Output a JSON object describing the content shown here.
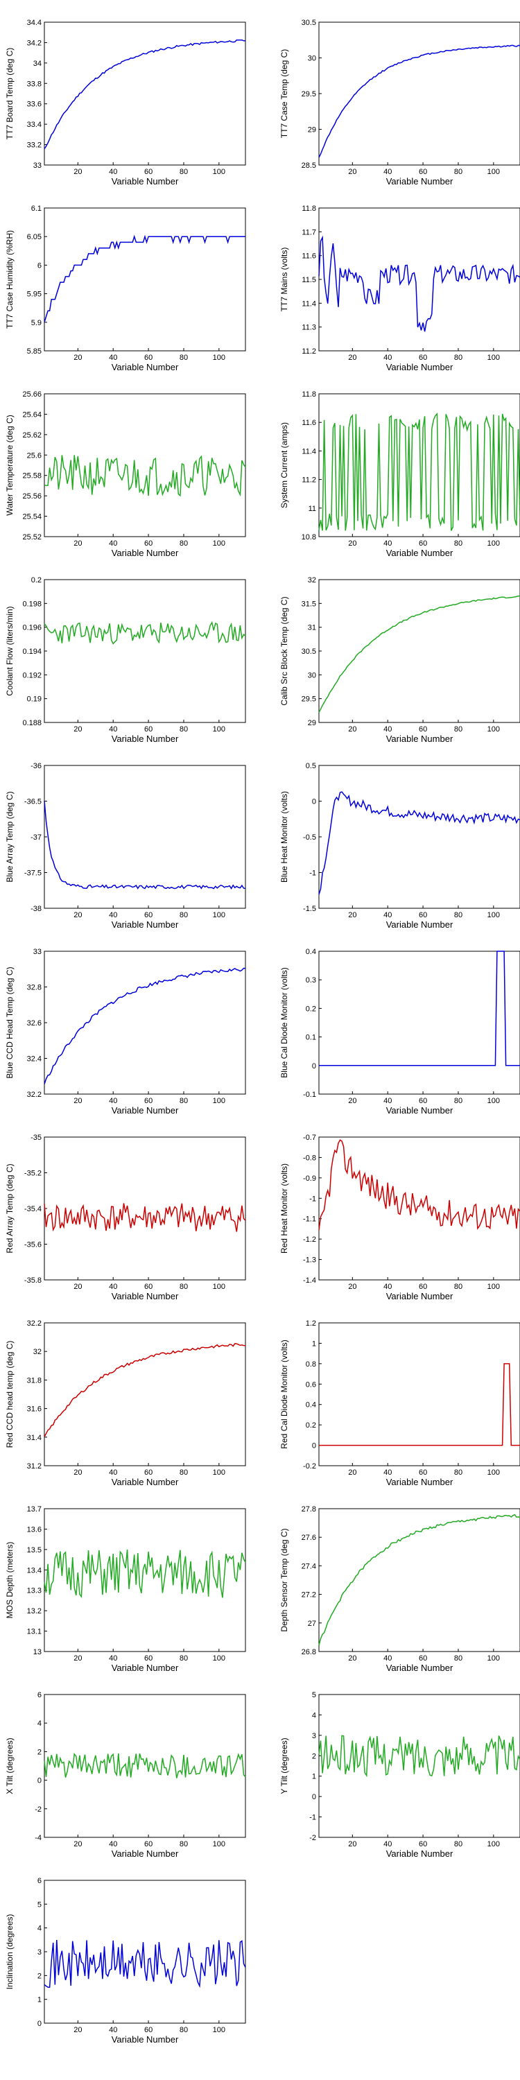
{
  "chart_data": [
    {
      "type": "line",
      "ylabel": "TT7 Board Temp (deg C)",
      "xlabel": "Variable Number",
      "color": "#0000dd",
      "xlim": [
        1,
        115
      ],
      "ylim": [
        33,
        34.4
      ],
      "xticks": [
        20,
        40,
        60,
        80,
        100
      ],
      "yticks": [
        "33",
        "33.2",
        "33.4",
        "33.6",
        "33.8",
        "34",
        "34.2",
        "34.4"
      ],
      "generator": {
        "kind": "rise",
        "start": 33.15,
        "end": 34.22,
        "rate": 0.035,
        "noise": 0.02,
        "seed": 11
      }
    },
    {
      "type": "line",
      "ylabel": "TT7 Case Temp (deg C)",
      "xlabel": "Variable Number",
      "color": "#0000dd",
      "xlim": [
        1,
        115
      ],
      "ylim": [
        28.5,
        30.5
      ],
      "xticks": [
        20,
        40,
        60,
        80,
        100
      ],
      "yticks": [
        "28.5",
        "29",
        "29.5",
        "30",
        "30.5"
      ],
      "generator": {
        "kind": "rise",
        "start": 28.6,
        "end": 30.17,
        "rate": 0.04,
        "noise": 0.02,
        "seed": 12
      }
    },
    {
      "type": "line",
      "ylabel": "TT7 Case Humidity (%RH)",
      "xlabel": "Variable Number",
      "color": "#0000dd",
      "xlim": [
        1,
        115
      ],
      "ylim": [
        5.85,
        6.1
      ],
      "xticks": [
        20,
        40,
        60,
        80,
        100
      ],
      "yticks": [
        "5.85",
        "5.9",
        "5.95",
        "6",
        "6.05",
        "6.1"
      ],
      "generator": {
        "kind": "steps",
        "start": 5.9,
        "end": 6.05,
        "rate": 0.06,
        "step": 0.01,
        "noise": 0.01,
        "seed": 13
      }
    },
    {
      "type": "line",
      "ylabel": "TT7 Mains  (volts)",
      "xlabel": "Variable Number",
      "color": "#0000dd",
      "xlim": [
        1,
        115
      ],
      "ylim": [
        11.2,
        11.8
      ],
      "xticks": [
        20,
        40,
        60,
        80,
        100
      ],
      "yticks": [
        "11.2",
        "11.3",
        "11.4",
        "11.5",
        "11.6",
        "11.7",
        "11.8"
      ],
      "generator": {
        "kind": "mains",
        "base": 11.52,
        "noise": 0.04,
        "seed": 14
      }
    },
    {
      "type": "line",
      "ylabel": "Water Temperature (deg C)",
      "xlabel": "Variable Number",
      "color": "#22aa22",
      "xlim": [
        1,
        115
      ],
      "ylim": [
        25.52,
        25.66
      ],
      "xticks": [
        20,
        40,
        60,
        80,
        100
      ],
      "yticks": [
        "25.52",
        "25.54",
        "25.56",
        "25.58",
        "25.6",
        "25.62",
        "25.64",
        "25.66"
      ],
      "generator": {
        "kind": "noisy",
        "base": 25.58,
        "amp": 0.02,
        "seed": 21
      }
    },
    {
      "type": "line",
      "ylabel": "System Current (amps)",
      "xlabel": "Variable Number",
      "color": "#22aa22",
      "xlim": [
        1,
        115
      ],
      "ylim": [
        10.8,
        11.8
      ],
      "xticks": [
        20,
        40,
        60,
        80,
        100
      ],
      "yticks": [
        "10.8",
        "11",
        "11.2",
        "11.4",
        "11.6",
        "11.8"
      ],
      "generator": {
        "kind": "switch",
        "low": 10.9,
        "high": 11.6,
        "noise": 0.06,
        "seed": 22
      }
    },
    {
      "type": "line",
      "ylabel": "Coolant Flow (liters/min)",
      "xlabel": "Variable Number",
      "color": "#22aa22",
      "xlim": [
        1,
        115
      ],
      "ylim": [
        0.188,
        0.2
      ],
      "xticks": [
        20,
        40,
        60,
        80,
        100
      ],
      "yticks": [
        "0.188",
        "0.19",
        "0.192",
        "0.194",
        "0.196",
        "0.198",
        "0.2"
      ],
      "generator": {
        "kind": "noisy",
        "base": 0.1955,
        "amp": 0.0009,
        "seed": 23
      }
    },
    {
      "type": "line",
      "ylabel": "Calib Src Block Temp (deg C)",
      "xlabel": "Variable Number",
      "color": "#22aa22",
      "xlim": [
        1,
        115
      ],
      "ylim": [
        29,
        32
      ],
      "xticks": [
        20,
        40,
        60,
        80,
        100
      ],
      "yticks": [
        "29",
        "29.5",
        "30",
        "30.5",
        "31",
        "31.5",
        "32"
      ],
      "generator": {
        "kind": "rise",
        "start": 29.2,
        "end": 31.65,
        "rate": 0.03,
        "noise": 0.03,
        "seed": 24
      }
    },
    {
      "type": "line",
      "ylabel": "Blue Array Temp (deg C)",
      "xlabel": "Variable Number",
      "color": "#0000dd",
      "xlim": [
        1,
        115
      ],
      "ylim": [
        -38,
        -36
      ],
      "xticks": [
        20,
        40,
        60,
        80,
        100
      ],
      "yticks": [
        "-38",
        "-37.5",
        "-37",
        "-36.5",
        "-36"
      ],
      "generator": {
        "kind": "drop",
        "start": -36.5,
        "end": -37.7,
        "rate": 0.25,
        "noise": 0.05,
        "seed": 31
      }
    },
    {
      "type": "line",
      "ylabel": "Blue Heat Monitor (volts)",
      "xlabel": "Variable Number",
      "color": "#0000dd",
      "xlim": [
        1,
        115
      ],
      "ylim": [
        -1.5,
        0.5
      ],
      "xticks": [
        20,
        40,
        60,
        80,
        100
      ],
      "yticks": [
        "-1.5",
        "-1",
        "-0.5",
        "0",
        "0.5"
      ],
      "generator": {
        "kind": "spike_decay",
        "start": -1.3,
        "peak": 0.1,
        "end": -0.25,
        "noise": 0.07,
        "seed": 32
      }
    },
    {
      "type": "line",
      "ylabel": "Blue CCD Head Temp (deg C)",
      "xlabel": "Variable Number",
      "color": "#0000dd",
      "xlim": [
        1,
        115
      ],
      "ylim": [
        32.2,
        33
      ],
      "xticks": [
        20,
        40,
        60,
        80,
        100
      ],
      "yticks": [
        "32.2",
        "32.4",
        "32.6",
        "32.8",
        "33"
      ],
      "generator": {
        "kind": "rise",
        "start": 32.26,
        "end": 32.9,
        "rate": 0.03,
        "noise": 0.02,
        "seed": 33
      }
    },
    {
      "type": "line",
      "ylabel": "Blue Cal Diode Monitor (volts)",
      "xlabel": "Variable Number",
      "color": "#0000dd",
      "xlim": [
        1,
        115
      ],
      "ylim": [
        -0.1,
        0.4
      ],
      "xticks": [
        20,
        40,
        60,
        80,
        100
      ],
      "yticks": [
        "-0.1",
        "0",
        "0.1",
        "0.2",
        "0.3",
        "0.4"
      ],
      "generator": {
        "kind": "pulse",
        "base": 0,
        "height": 0.4,
        "from": 102,
        "to": 106,
        "seed": 34
      }
    },
    {
      "type": "line",
      "ylabel": "Red Array Temp (deg C)",
      "xlabel": "Variable Number",
      "color": "#cc0000",
      "xlim": [
        1,
        115
      ],
      "ylim": [
        -35.8,
        -35
      ],
      "xticks": [
        20,
        40,
        60,
        80,
        100
      ],
      "yticks": [
        "-35.8",
        "-35.6",
        "-35.4",
        "-35.2",
        "-35"
      ],
      "generator": {
        "kind": "noisy",
        "base": -35.45,
        "amp": 0.08,
        "seed": 41
      }
    },
    {
      "type": "line",
      "ylabel": "Red Heat Monitor (volts)",
      "xlabel": "Variable Number",
      "color": "#cc0000",
      "xlim": [
        1,
        115
      ],
      "ylim": [
        -1.4,
        -0.7
      ],
      "xticks": [
        20,
        40,
        60,
        80,
        100
      ],
      "yticks": [
        "-1.4",
        "-1.3",
        "-1.2",
        "-1.1",
        "-1",
        "-0.9",
        "-0.8",
        "-0.7"
      ],
      "generator": {
        "kind": "spike_decay",
        "start": -1.2,
        "peak": -0.75,
        "end": -1.1,
        "noise": 0.07,
        "seed": 42
      }
    },
    {
      "type": "line",
      "ylabel": "Red CCD head temp (deg C)",
      "xlabel": "Variable Number",
      "color": "#cc0000",
      "xlim": [
        1,
        115
      ],
      "ylim": [
        31.2,
        32.2
      ],
      "xticks": [
        20,
        40,
        60,
        80,
        100
      ],
      "yticks": [
        "31.2",
        "31.4",
        "31.6",
        "31.8",
        "32",
        "32.2"
      ],
      "generator": {
        "kind": "rise",
        "start": 31.4,
        "end": 32.05,
        "rate": 0.03,
        "noise": 0.02,
        "seed": 43
      }
    },
    {
      "type": "line",
      "ylabel": "Red Cal Diode Monitor (volts)",
      "xlabel": "Variable Number",
      "color": "#cc0000",
      "xlim": [
        1,
        115
      ],
      "ylim": [
        -0.2,
        1.2
      ],
      "xticks": [
        20,
        40,
        60,
        80,
        100
      ],
      "yticks": [
        "-0.2",
        "0",
        "0.2",
        "0.4",
        "0.6",
        "0.8",
        "1",
        "1.2"
      ],
      "generator": {
        "kind": "pulse",
        "base": 0,
        "height": 0.8,
        "from": 106,
        "to": 109,
        "seed": 44
      }
    },
    {
      "type": "line",
      "ylabel": "MOS Depth  (meters)",
      "xlabel": "Variable Number",
      "color": "#22aa22",
      "xlim": [
        1,
        115
      ],
      "ylim": [
        13,
        13.7
      ],
      "xticks": [
        20,
        40,
        60,
        80,
        100
      ],
      "yticks": [
        "13",
        "13.1",
        "13.2",
        "13.3",
        "13.4",
        "13.5",
        "13.6",
        "13.7"
      ],
      "generator": {
        "kind": "noisy",
        "base": 13.38,
        "amp": 0.12,
        "seed": 51
      }
    },
    {
      "type": "line",
      "ylabel": "Depth Sensor Temp (deg C)",
      "xlabel": "Variable Number",
      "color": "#22aa22",
      "xlim": [
        1,
        115
      ],
      "ylim": [
        26.8,
        27.8
      ],
      "xticks": [
        20,
        40,
        60,
        80,
        100
      ],
      "yticks": [
        "26.8",
        "27",
        "27.2",
        "27.4",
        "27.6",
        "27.8"
      ],
      "generator": {
        "kind": "rise",
        "start": 26.85,
        "end": 27.75,
        "rate": 0.035,
        "noise": 0.02,
        "seed": 52
      }
    },
    {
      "type": "line",
      "ylabel": "X Tilt  (degrees)",
      "xlabel": "Variable Number",
      "color": "#22aa22",
      "xlim": [
        1,
        115
      ],
      "ylim": [
        -4,
        6
      ],
      "xticks": [
        20,
        40,
        60,
        80,
        100
      ],
      "yticks": [
        "-4",
        "-2",
        "0",
        "2",
        "4",
        "6"
      ],
      "generator": {
        "kind": "noisy",
        "base": 1,
        "amp": 0.9,
        "seed": 61
      }
    },
    {
      "type": "line",
      "ylabel": "Y Tilt  (degrees)",
      "xlabel": "Variable Number",
      "color": "#22aa22",
      "xlim": [
        1,
        115
      ],
      "ylim": [
        -2,
        5
      ],
      "xticks": [
        20,
        40,
        60,
        80,
        100
      ],
      "yticks": [
        "-2",
        "-1",
        "0",
        "1",
        "2",
        "3",
        "4",
        "5"
      ],
      "generator": {
        "kind": "noisy",
        "base": 2,
        "amp": 1,
        "seed": 62
      }
    },
    {
      "type": "line",
      "ylabel": "Inclination  (degrees)",
      "xlabel": "Variable Number",
      "color": "#0000dd",
      "xlim": [
        1,
        115
      ],
      "ylim": [
        0,
        6
      ],
      "xticks": [
        20,
        40,
        60,
        80,
        100
      ],
      "yticks": [
        "0",
        "1",
        "2",
        "3",
        "4",
        "5",
        "6"
      ],
      "generator": {
        "kind": "noisy",
        "base": 2.5,
        "amp": 1,
        "seed": 71
      }
    }
  ]
}
